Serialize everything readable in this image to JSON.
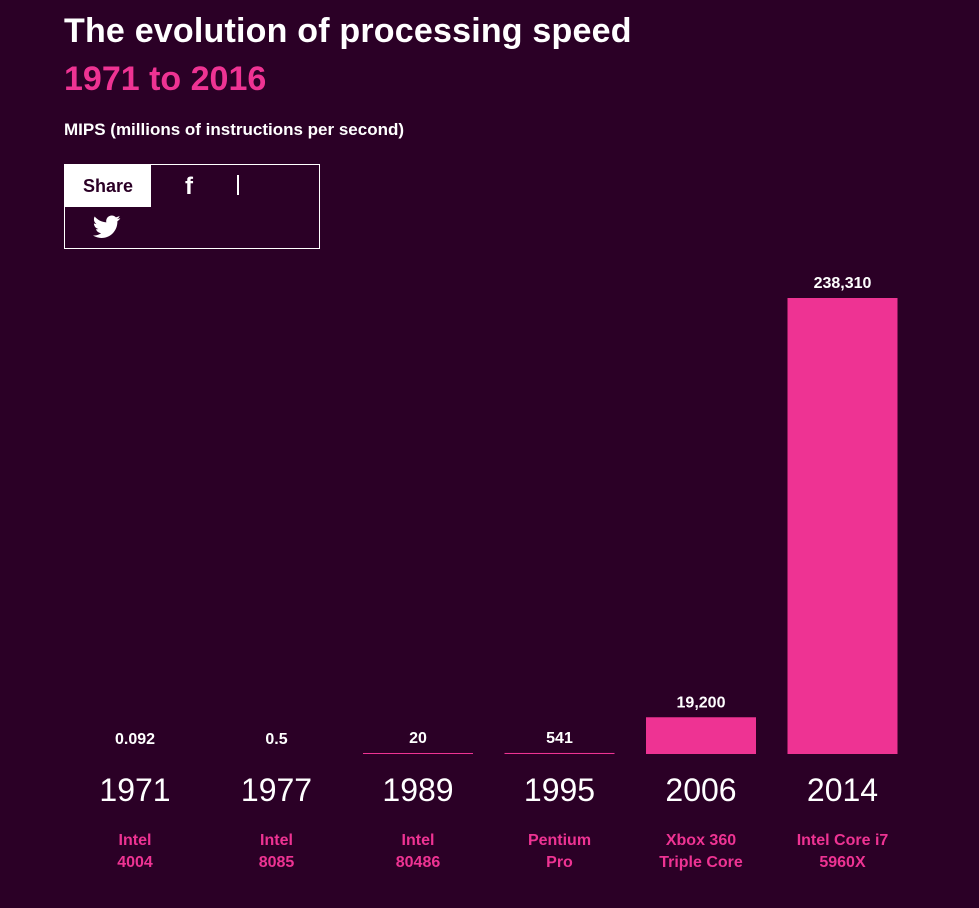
{
  "header": {
    "title": "The evolution of processing speed",
    "subtitle": "1971 to 2016",
    "unit_label": "MIPS (millions of instructions per second)"
  },
  "share": {
    "label": "Share",
    "facebook_glyph": "f",
    "icons": [
      "facebook-icon",
      "twitter-icon"
    ]
  },
  "colors": {
    "background": "#2b0026",
    "accent": "#ee3393",
    "text": "#ffffff"
  },
  "chart_data": {
    "type": "bar",
    "ylabel": "MIPS (millions of instructions per second)",
    "ylim": [
      0,
      238310
    ],
    "grid": false,
    "categories": [
      "1971",
      "1977",
      "1989",
      "1995",
      "2006",
      "2014"
    ],
    "value_labels": [
      "0.092",
      "0.5",
      "20",
      "541",
      "19,200",
      "238,310"
    ],
    "values": [
      0.092,
      0.5,
      20,
      541,
      19200,
      238310
    ],
    "processors": [
      [
        "Intel",
        "4004"
      ],
      [
        "Intel",
        "8085"
      ],
      [
        "Intel",
        "80486"
      ],
      [
        "Pentium",
        "Pro"
      ],
      [
        "Xbox 360",
        "Triple Core"
      ],
      [
        "Intel Core i7",
        "5960X"
      ]
    ]
  }
}
